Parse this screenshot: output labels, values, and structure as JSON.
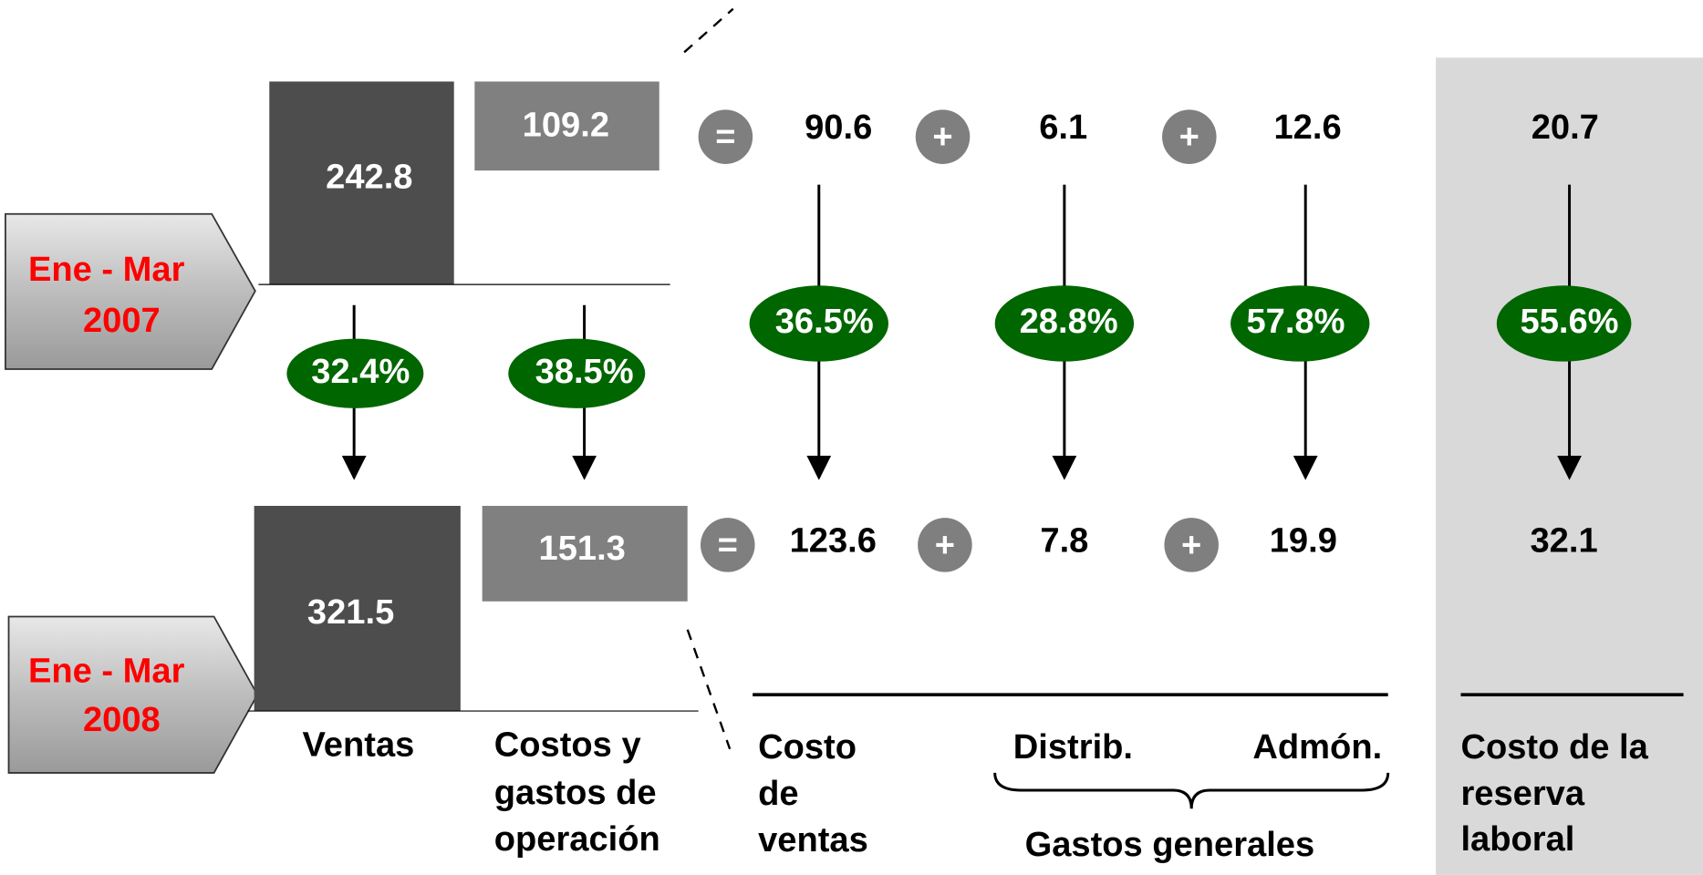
{
  "periods": [
    {
      "line1": "Ene - Mar",
      "line2": "2007"
    },
    {
      "line1": "Ene - Mar",
      "line2": "2008"
    }
  ],
  "rows": [
    {
      "ventas": 242.8,
      "costos": 109.2,
      "ops": [
        "=",
        "+",
        "+"
      ],
      "costo_ventas": 90.6,
      "distrib": 6.1,
      "admon": 12.6,
      "reserva": 20.7
    },
    {
      "ventas": 321.5,
      "costos": 151.3,
      "ops": [
        "=",
        "+",
        "+"
      ],
      "costo_ventas": 123.6,
      "distrib": 7.8,
      "admon": 19.9,
      "reserva": 32.1
    }
  ],
  "changes": {
    "ventas": "32.4%",
    "costos": "38.5%",
    "costo_ventas": "36.5%",
    "distrib": "28.8%",
    "admon": "57.8%",
    "reserva": "55.6%"
  },
  "labels": {
    "ventas": "Ventas",
    "costos": [
      "Costos y",
      "gastos de",
      "operación"
    ],
    "costo_ventas": [
      "Costo",
      "de",
      "ventas"
    ],
    "distrib": "Distrib.",
    "admon": "Admón.",
    "gastos_generales": "Gastos generales",
    "reserva": [
      "Costo de la",
      "reserva",
      "laboral"
    ]
  }
}
